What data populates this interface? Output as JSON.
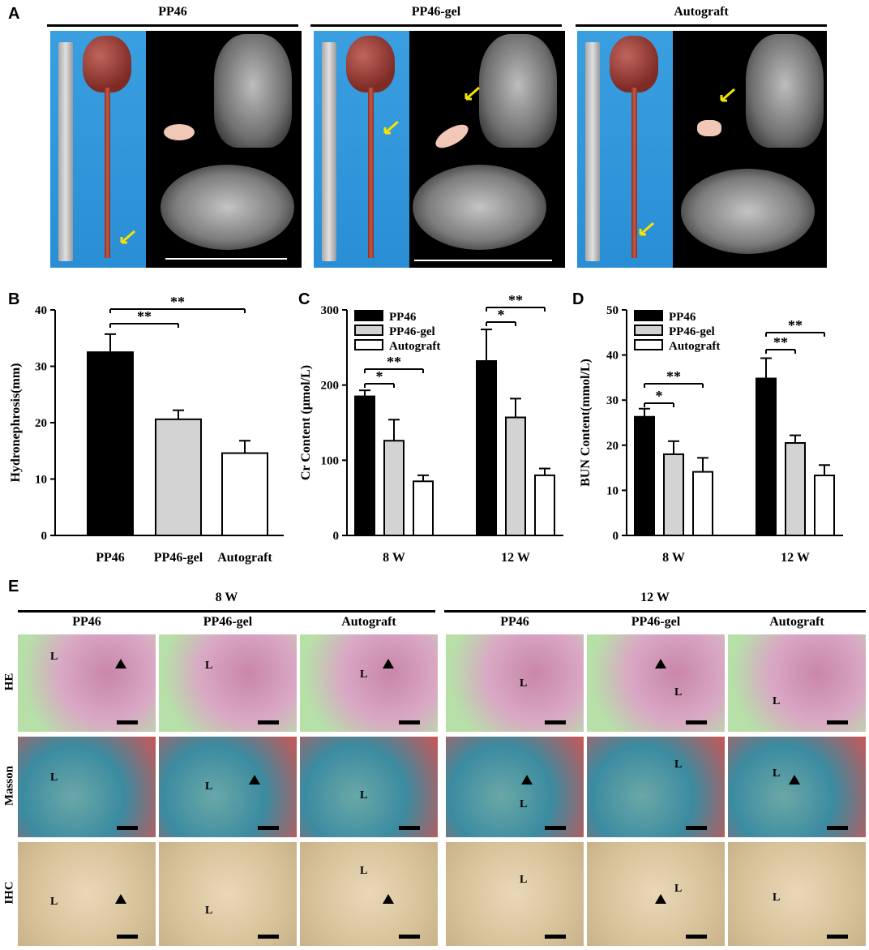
{
  "panel_letters": {
    "a": "A",
    "b": "B",
    "c": "C",
    "d": "D",
    "e": "E"
  },
  "panel_a": {
    "groups": [
      {
        "title": "PP46"
      },
      {
        "title": "PP46-gel"
      },
      {
        "title": "Autograft"
      }
    ],
    "colors": {
      "background_photo": "#2a8ed6",
      "arrow": "#f5e400",
      "ct_background": "#000000"
    }
  },
  "panel_e": {
    "timepoints": [
      "8 W",
      "12 W"
    ],
    "groups": [
      "PP46",
      "PP46-gel",
      "Autograft",
      "PP46",
      "PP46-gel",
      "Autograft"
    ],
    "rows": [
      "HE",
      "Masson",
      "IHC"
    ],
    "lumen_label": "L"
  },
  "chart_data": [
    {
      "type": "bar",
      "id": "B",
      "ylabel": "Hydronephrosis(mm)",
      "xlabel": "",
      "ylim": [
        0,
        40
      ],
      "yticks": [
        0,
        10,
        20,
        30,
        40
      ],
      "categories": [
        "PP46",
        "PP46-gel",
        "Autograft"
      ],
      "values": [
        32.5,
        20.6,
        14.6
      ],
      "errors": [
        3.2,
        1.6,
        2.2
      ],
      "fills": [
        "#000000",
        "#d3d3d3",
        "#ffffff"
      ],
      "significance": [
        {
          "from": 0,
          "to": 1,
          "label": "**"
        },
        {
          "from": 0,
          "to": 2,
          "label": "**"
        }
      ]
    },
    {
      "type": "bar",
      "id": "C",
      "ylabel": "Cr Content (μmol/L)",
      "xlabel": "",
      "ylim": [
        0,
        300
      ],
      "yticks": [
        0,
        100,
        200,
        300
      ],
      "categories": [
        "8 W",
        "12 W"
      ],
      "series": [
        {
          "name": "PP46",
          "values": [
            185,
            232
          ],
          "errors": [
            8,
            42
          ],
          "fill": "#000000"
        },
        {
          "name": "PP46-gel",
          "values": [
            126,
            157
          ],
          "errors": [
            28,
            25
          ],
          "fill": "#d3d3d3"
        },
        {
          "name": "Autograft",
          "values": [
            72,
            80
          ],
          "errors": [
            8,
            9
          ],
          "fill": "#ffffff"
        }
      ],
      "legend": "top-left",
      "significance": [
        {
          "cat": 0,
          "from": 0,
          "to": 1,
          "label": "*"
        },
        {
          "cat": 0,
          "from": 0,
          "to": 2,
          "label": "**"
        },
        {
          "cat": 1,
          "from": 0,
          "to": 1,
          "label": "*"
        },
        {
          "cat": 1,
          "from": 0,
          "to": 2,
          "label": "**"
        }
      ]
    },
    {
      "type": "bar",
      "id": "D",
      "ylabel": "BUN Content(mmol/L)",
      "xlabel": "",
      "ylim": [
        0,
        50
      ],
      "yticks": [
        0,
        10,
        20,
        30,
        40,
        50
      ],
      "categories": [
        "8 W",
        "12 W"
      ],
      "series": [
        {
          "name": "PP46",
          "values": [
            26.3,
            34.8
          ],
          "errors": [
            1.8,
            4.5
          ],
          "fill": "#000000"
        },
        {
          "name": "PP46-gel",
          "values": [
            18.0,
            20.5
          ],
          "errors": [
            2.9,
            1.7
          ],
          "fill": "#d3d3d3"
        },
        {
          "name": "Autograft",
          "values": [
            14.1,
            13.3
          ],
          "errors": [
            3.1,
            2.3
          ],
          "fill": "#ffffff"
        }
      ],
      "legend": "top-left",
      "significance": [
        {
          "cat": 0,
          "from": 0,
          "to": 1,
          "label": "*"
        },
        {
          "cat": 0,
          "from": 0,
          "to": 2,
          "label": "**"
        },
        {
          "cat": 1,
          "from": 0,
          "to": 1,
          "label": "**"
        },
        {
          "cat": 1,
          "from": 0,
          "to": 2,
          "label": "**"
        }
      ]
    }
  ]
}
